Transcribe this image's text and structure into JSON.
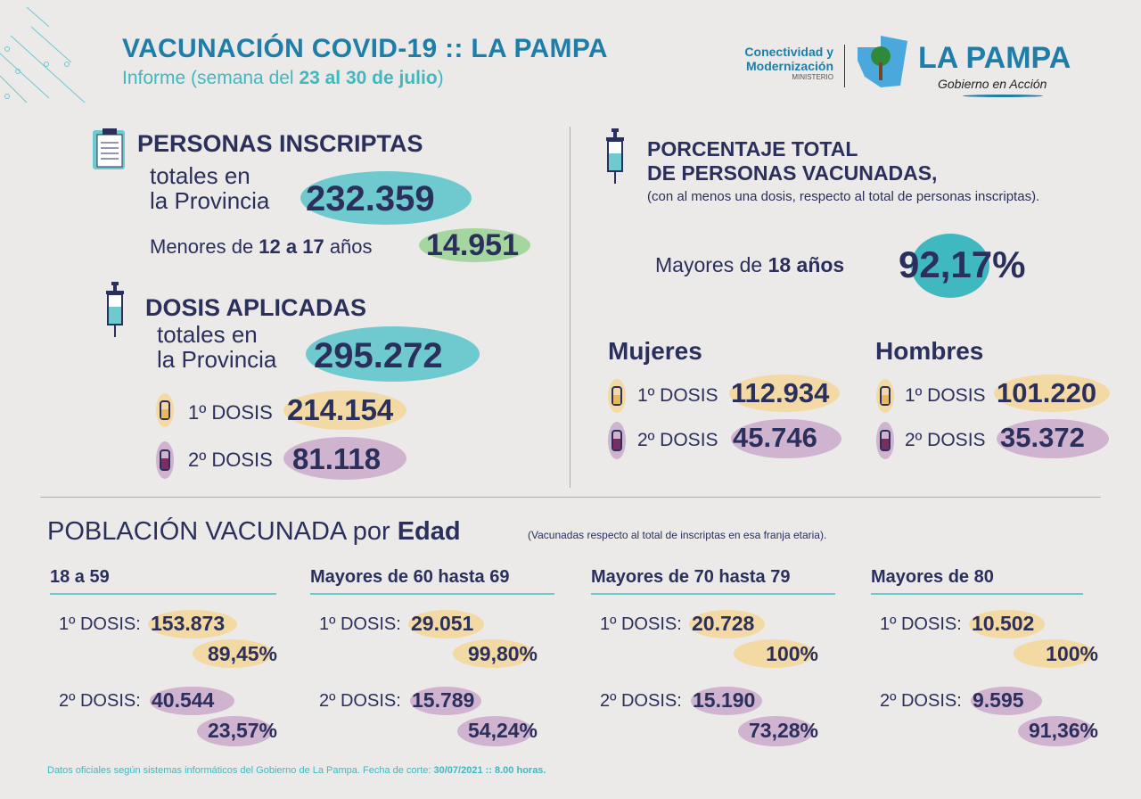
{
  "header": {
    "title": "VACUNACIÓN COVID-19 :: LA PAMPA",
    "subtitle_prefix": "Informe (semana del ",
    "subtitle_bold": "23 al 30 de julio",
    "subtitle_suffix": ")"
  },
  "logo": {
    "ministry_line1": "Conectividad y",
    "ministry_line2": "Modernización",
    "ministry_line3": "MINISTERIO",
    "brand": "LA PAMPA",
    "tagline": "Gobierno en Acción"
  },
  "inscriptas": {
    "title": "PERSONAS INSCRIPTAS",
    "label1": "totales en",
    "label2": "la Provincia",
    "total": "232.359",
    "minors_prefix": "Menores de ",
    "minors_bold": "12 a 17",
    "minors_suffix": " años",
    "minors": "14.951"
  },
  "dosis": {
    "title": "DOSIS APLICADAS",
    "label1": "totales en",
    "label2": "la Provincia",
    "total": "295.272",
    "d1_label": "1º DOSIS",
    "d1": "214.154",
    "d2_label": "2º DOSIS",
    "d2": "81.118"
  },
  "porcentaje": {
    "title1": "PORCENTAJE TOTAL",
    "title2": "DE PERSONAS VACUNADAS,",
    "note": "(con al menos una dosis, respecto al total de personas inscriptas).",
    "label_prefix": "Mayores de ",
    "label_bold": "18 años",
    "value": "92,17%"
  },
  "mujeres": {
    "title": "Mujeres",
    "d1_label": "1º DOSIS",
    "d1": "112.934",
    "d2_label": "2º DOSIS",
    "d2": "45.746"
  },
  "hombres": {
    "title": "Hombres",
    "d1_label": "1º DOSIS",
    "d1": "101.220",
    "d2_label": "2º DOSIS",
    "d2": "35.372"
  },
  "edad": {
    "title_prefix": "POBLACIÓN VACUNADA por ",
    "title_bold": "Edad",
    "note": "(Vacunadas respecto al total de inscriptas en esa franja etaria).",
    "groups": [
      {
        "name": "18 a 59",
        "d1_label": "1º DOSIS:",
        "d1": "153.873",
        "d1_pct": "89,45%",
        "d2_label": "2º DOSIS:",
        "d2": "40.544",
        "d2_pct": "23,57%"
      },
      {
        "name": "Mayores de 60 hasta 69",
        "d1_label": "1º DOSIS:",
        "d1": "29.051",
        "d1_pct": "99,80%",
        "d2_label": "2º DOSIS:",
        "d2": "15.789",
        "d2_pct": "54,24%"
      },
      {
        "name": "Mayores de 70 hasta 79",
        "d1_label": "1º DOSIS:",
        "d1": "20.728",
        "d1_pct": "100%",
        "d2_label": "2º DOSIS:",
        "d2": "15.190",
        "d2_pct": "73,28%"
      },
      {
        "name": "Mayores de 80",
        "d1_label": "1º DOSIS:",
        "d1": "10.502",
        "d1_pct": "100%",
        "d2_label": "2º DOSIS:",
        "d2": "9.595",
        "d2_pct": "91,36%"
      }
    ]
  },
  "footer": {
    "text": "Datos oficiales según sistemas informáticos del Gobierno de La Pampa. Fecha de corte: ",
    "bold": "30/07/2021 :: 8.00 horas."
  },
  "colors": {
    "navy": "#2b2f5c",
    "teal": "#1f7ea8",
    "light_teal": "#6fcad0",
    "yellow": "#f3d9a4",
    "purple": "#cfb3cf",
    "green": "#a6d6a0"
  }
}
